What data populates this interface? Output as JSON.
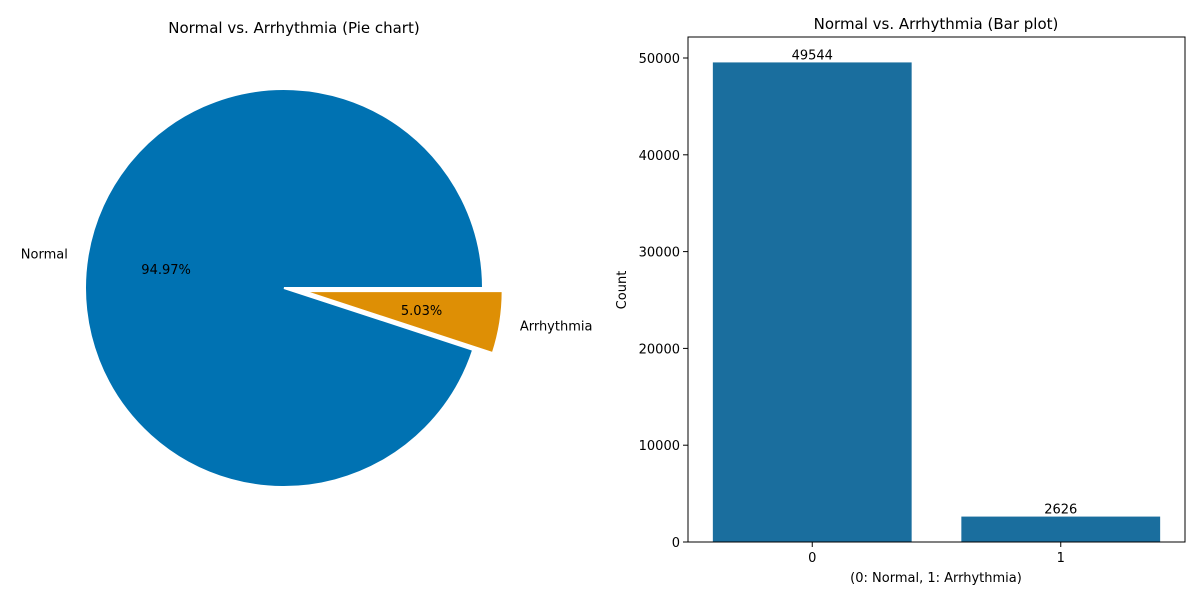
{
  "chart_data": [
    {
      "type": "pie",
      "title": "Normal vs. Arrhythmia (Pie chart)",
      "labels": [
        "Normal",
        "Arrhythmia"
      ],
      "values": [
        49544,
        2626
      ],
      "percent_labels": [
        "94.97%",
        "5.03%"
      ],
      "colors": [
        "#0072b2",
        "#de8f05"
      ],
      "explode": [
        0,
        0.1
      ]
    },
    {
      "type": "bar",
      "title": "Normal vs. Arrhythmia (Bar plot)",
      "categories": [
        "0",
        "1"
      ],
      "values": [
        49544,
        2626
      ],
      "value_labels": [
        "49544",
        "2626"
      ],
      "xlabel": "(0: Normal, 1: Arrhythmia)",
      "ylabel": "Count",
      "ylim": [
        0,
        52170
      ],
      "yticks": [
        0,
        10000,
        20000,
        30000,
        40000,
        50000
      ],
      "ytick_labels": [
        "0",
        "10000",
        "20000",
        "30000",
        "40000",
        "50000"
      ],
      "bar_color": "#1a6e9e",
      "grid": false
    }
  ]
}
